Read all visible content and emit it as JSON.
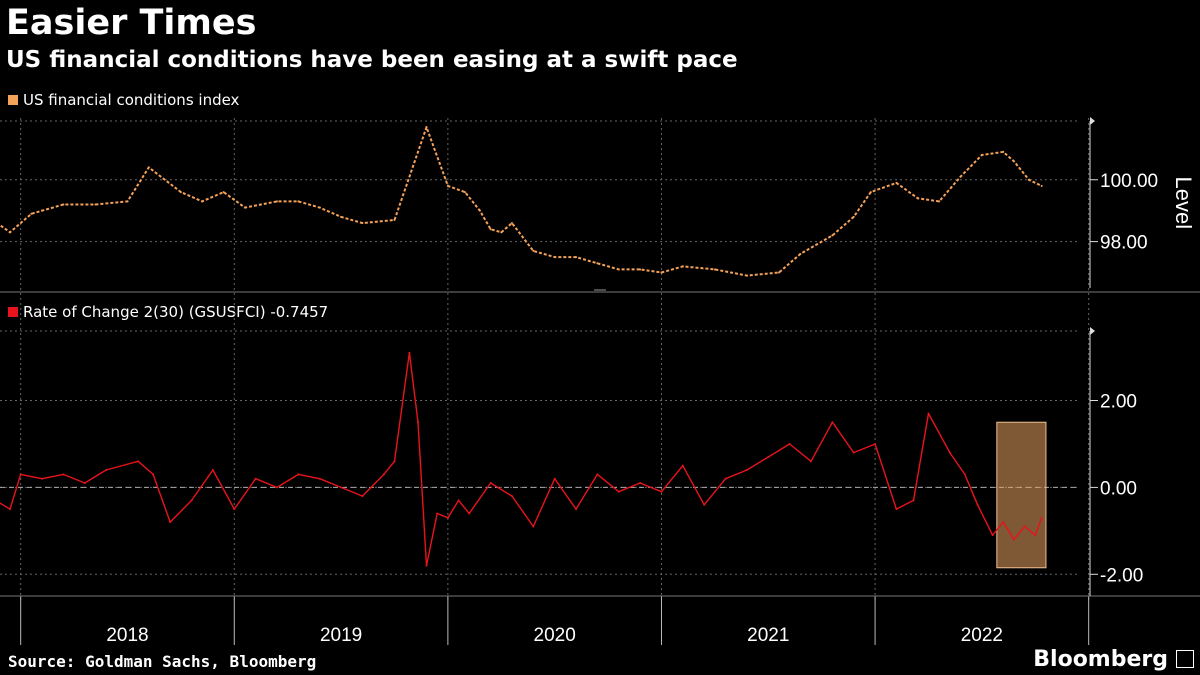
{
  "title": "Easier Times",
  "subtitle": "US financial conditions have been easing at a swift pace",
  "source": "Source: Goldman Sachs, Bloomberg",
  "brand": "Bloomberg",
  "colors": {
    "background": "#000000",
    "top_series": "#f4a259",
    "bottom_series": "#e8141b",
    "highlight": "#e8a060",
    "grid": "#666666"
  },
  "chart_data": [
    {
      "type": "line",
      "title": "",
      "legend": "US financial conditions index",
      "ylabel": "Level",
      "ylim": [
        96.5,
        101.9
      ],
      "yticks": [
        98,
        100
      ],
      "ytick_labels": [
        "98.00",
        "100.00"
      ],
      "x_start": "2017-10",
      "x_end": "2022-10",
      "series": [
        {
          "name": "US financial conditions index",
          "x": [
            2017.85,
            2017.95,
            2018.05,
            2018.1,
            2018.2,
            2018.35,
            2018.5,
            2018.6,
            2018.75,
            2018.85,
            2018.95,
            2019.05,
            2019.2,
            2019.3,
            2019.4,
            2019.5,
            2019.6,
            2019.75,
            2019.9,
            2020.0,
            2020.08,
            2020.15,
            2020.2,
            2020.25,
            2020.3,
            2020.4,
            2020.5,
            2020.6,
            2020.7,
            2020.8,
            2020.9,
            2021.0,
            2021.1,
            2021.25,
            2021.4,
            2021.55,
            2021.65,
            2021.8,
            2021.9,
            2021.98,
            2022.1,
            2022.2,
            2022.3,
            2022.4,
            2022.5,
            2022.6,
            2022.65,
            2022.72,
            2022.78
          ],
          "values": [
            98.8,
            98.3,
            98.9,
            99.0,
            99.2,
            99.2,
            99.3,
            100.4,
            99.6,
            99.3,
            99.6,
            99.1,
            99.3,
            99.3,
            99.1,
            98.8,
            98.6,
            98.7,
            101.7,
            99.8,
            99.6,
            99.0,
            98.4,
            98.3,
            98.6,
            97.7,
            97.5,
            97.5,
            97.3,
            97.1,
            97.1,
            97.0,
            97.2,
            97.1,
            96.9,
            97.0,
            97.6,
            98.2,
            98.8,
            99.6,
            99.9,
            99.4,
            99.3,
            100.1,
            100.8,
            100.9,
            100.6,
            100.0,
            99.8
          ]
        }
      ]
    },
    {
      "type": "line",
      "title": "",
      "legend": "Rate of Change 2(30) (GSUSFCI) -0.7457",
      "ylim": [
        -2.5,
        3.6
      ],
      "yticks": [
        -2,
        0,
        2
      ],
      "ytick_labels": [
        "-2.00",
        "0.00",
        "2.00"
      ],
      "zero_line": true,
      "highlight_range": [
        2022.57,
        2022.8
      ],
      "highlight_ylim": [
        -1.85,
        1.5
      ],
      "series": [
        {
          "name": "Rate of Change 2(30) (GSUSFCI)",
          "x": [
            2017.85,
            2017.95,
            2018.0,
            2018.1,
            2018.2,
            2018.3,
            2018.4,
            2018.55,
            2018.62,
            2018.7,
            2018.8,
            2018.9,
            2019.0,
            2019.1,
            2019.2,
            2019.3,
            2019.4,
            2019.5,
            2019.6,
            2019.7,
            2019.75,
            2019.82,
            2019.86,
            2019.9,
            2019.95,
            2020.0,
            2020.05,
            2020.1,
            2020.2,
            2020.3,
            2020.4,
            2020.5,
            2020.6,
            2020.7,
            2020.8,
            2020.9,
            2021.0,
            2021.1,
            2021.2,
            2021.3,
            2021.4,
            2021.5,
            2021.6,
            2021.7,
            2021.8,
            2021.9,
            2022.0,
            2022.1,
            2022.18,
            2022.25,
            2022.35,
            2022.42,
            2022.48,
            2022.55,
            2022.6,
            2022.65,
            2022.7,
            2022.75,
            2022.78
          ],
          "values": [
            -0.2,
            -0.5,
            0.3,
            0.2,
            0.3,
            0.1,
            0.4,
            0.6,
            0.3,
            -0.8,
            -0.3,
            0.4,
            -0.5,
            0.2,
            0.0,
            0.3,
            0.2,
            0.0,
            -0.2,
            0.3,
            0.6,
            3.1,
            1.5,
            -1.8,
            -0.6,
            -0.7,
            -0.3,
            -0.6,
            0.1,
            -0.2,
            -0.9,
            0.2,
            -0.5,
            0.3,
            -0.1,
            0.1,
            -0.1,
            0.5,
            -0.4,
            0.2,
            0.4,
            0.7,
            1.0,
            0.6,
            1.5,
            0.8,
            1.0,
            -0.5,
            -0.3,
            1.7,
            0.8,
            0.3,
            -0.4,
            -1.1,
            -0.8,
            -1.2,
            -0.9,
            -1.1,
            -0.7
          ]
        }
      ]
    }
  ],
  "x_axis": {
    "labels": [
      "2018",
      "2019",
      "2020",
      "2021",
      "2022"
    ],
    "label_positions_year": [
      2018.5,
      2019.5,
      2020.5,
      2021.5,
      2022.5
    ],
    "year_boundaries": [
      2018,
      2019,
      2020,
      2021,
      2022,
      2023
    ]
  }
}
